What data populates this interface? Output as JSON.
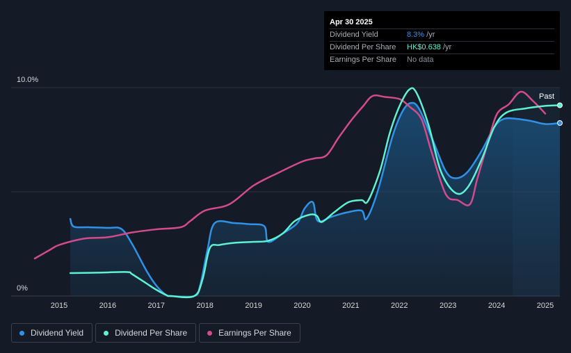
{
  "tooltip": {
    "date": "Apr 30 2025",
    "rows": [
      {
        "label": "Dividend Yield",
        "value": "8.3%",
        "unit": " /yr",
        "color": "#2e93e8"
      },
      {
        "label": "Dividend Per Share",
        "value": "HK$0.638",
        "unit": " /yr",
        "color": "#5ef2d2"
      },
      {
        "label": "Earnings Per Share",
        "value": "No data",
        "unit": "",
        "color": "#8a8f97"
      }
    ]
  },
  "legend": [
    {
      "label": "Dividend Yield",
      "color": "#2e93e8"
    },
    {
      "label": "Dividend Per Share",
      "color": "#5ef2d2"
    },
    {
      "label": "Earnings Per Share",
      "color": "#d44b8c"
    }
  ],
  "past_label": "Past",
  "chart_data": {
    "type": "line",
    "title": "",
    "xlabel": "",
    "ylabel": "",
    "xlim": [
      2014.5,
      2025.33
    ],
    "ylim": [
      0,
      10
    ],
    "x_ticks": [
      "2015",
      "2016",
      "2017",
      "2018",
      "2019",
      "2020",
      "2021",
      "2022",
      "2023",
      "2024",
      "2025"
    ],
    "y_ticks": [
      {
        "value": 10,
        "label": "10.0%"
      },
      {
        "value": 0,
        "label": "0%"
      }
    ],
    "grid": true,
    "past_region_start": 2024.33,
    "series": [
      {
        "name": "Dividend Yield",
        "color": "#2e93e8",
        "area": true,
        "end_marker": true,
        "points": [
          [
            2015.23,
            3.7
          ],
          [
            2015.3,
            3.33
          ],
          [
            2015.6,
            3.3
          ],
          [
            2016.0,
            3.27
          ],
          [
            2016.28,
            3.22
          ],
          [
            2016.5,
            2.5
          ],
          [
            2016.8,
            1.2
          ],
          [
            2017.0,
            0.5
          ],
          [
            2017.2,
            0.05
          ],
          [
            2017.3,
            0
          ],
          [
            2017.78,
            0
          ],
          [
            2017.9,
            0.5
          ],
          [
            2018.05,
            2.2
          ],
          [
            2018.2,
            3.5
          ],
          [
            2018.6,
            3.5
          ],
          [
            2018.9,
            3.45
          ],
          [
            2019.22,
            3.35
          ],
          [
            2019.3,
            2.6
          ],
          [
            2019.6,
            3.0
          ],
          [
            2019.9,
            3.5
          ],
          [
            2020.05,
            4.2
          ],
          [
            2020.22,
            4.5
          ],
          [
            2020.32,
            3.6
          ],
          [
            2020.6,
            3.8
          ],
          [
            2020.9,
            4.0
          ],
          [
            2021.22,
            4.1
          ],
          [
            2021.32,
            3.7
          ],
          [
            2021.55,
            5.0
          ],
          [
            2021.85,
            7.6
          ],
          [
            2022.05,
            8.8
          ],
          [
            2022.22,
            9.25
          ],
          [
            2022.4,
            9.0
          ],
          [
            2022.7,
            7.4
          ],
          [
            2022.95,
            6.0
          ],
          [
            2023.15,
            5.65
          ],
          [
            2023.4,
            5.95
          ],
          [
            2023.7,
            7.0
          ],
          [
            2023.95,
            8.1
          ],
          [
            2024.15,
            8.5
          ],
          [
            2024.4,
            8.5
          ],
          [
            2024.7,
            8.4
          ],
          [
            2025.0,
            8.25
          ],
          [
            2025.3,
            8.3
          ]
        ]
      },
      {
        "name": "Dividend Per Share",
        "color": "#5ef2d2",
        "area": false,
        "end_marker": true,
        "points": [
          [
            2015.23,
            1.1
          ],
          [
            2015.8,
            1.12
          ],
          [
            2016.4,
            1.15
          ],
          [
            2016.5,
            1.05
          ],
          [
            2016.8,
            0.6
          ],
          [
            2017.0,
            0.3
          ],
          [
            2017.2,
            0.05
          ],
          [
            2017.3,
            0
          ],
          [
            2017.78,
            0
          ],
          [
            2017.95,
            0.8
          ],
          [
            2018.1,
            2.3
          ],
          [
            2018.3,
            2.45
          ],
          [
            2018.6,
            2.55
          ],
          [
            2019.0,
            2.6
          ],
          [
            2019.3,
            2.65
          ],
          [
            2019.6,
            3.0
          ],
          [
            2019.85,
            3.6
          ],
          [
            2020.15,
            3.9
          ],
          [
            2020.3,
            3.85
          ],
          [
            2020.4,
            3.55
          ],
          [
            2020.65,
            4.0
          ],
          [
            2020.95,
            4.5
          ],
          [
            2021.22,
            4.6
          ],
          [
            2021.35,
            4.55
          ],
          [
            2021.6,
            6.0
          ],
          [
            2021.8,
            7.8
          ],
          [
            2022.0,
            9.1
          ],
          [
            2022.2,
            9.9
          ],
          [
            2022.35,
            9.75
          ],
          [
            2022.6,
            8.2
          ],
          [
            2022.85,
            6.0
          ],
          [
            2023.15,
            4.95
          ],
          [
            2023.4,
            5.2
          ],
          [
            2023.7,
            6.6
          ],
          [
            2023.95,
            8.1
          ],
          [
            2024.2,
            8.8
          ],
          [
            2024.6,
            9.0
          ],
          [
            2025.0,
            9.12
          ],
          [
            2025.3,
            9.15
          ]
        ]
      },
      {
        "name": "Earnings Per Share",
        "color": "#d44b8c",
        "area": false,
        "end_marker": false,
        "points": [
          [
            2014.5,
            1.8
          ],
          [
            2014.8,
            2.2
          ],
          [
            2015.0,
            2.45
          ],
          [
            2015.5,
            2.75
          ],
          [
            2016.0,
            2.82
          ],
          [
            2016.5,
            3.05
          ],
          [
            2017.0,
            3.2
          ],
          [
            2017.5,
            3.3
          ],
          [
            2017.7,
            3.6
          ],
          [
            2018.0,
            4.1
          ],
          [
            2018.5,
            4.4
          ],
          [
            2019.0,
            5.3
          ],
          [
            2019.5,
            5.9
          ],
          [
            2020.0,
            6.45
          ],
          [
            2020.25,
            6.6
          ],
          [
            2020.5,
            6.75
          ],
          [
            2020.75,
            7.6
          ],
          [
            2021.0,
            8.4
          ],
          [
            2021.25,
            9.1
          ],
          [
            2021.45,
            9.6
          ],
          [
            2021.7,
            9.55
          ],
          [
            2022.0,
            9.45
          ],
          [
            2022.2,
            9.1
          ],
          [
            2022.45,
            8.5
          ],
          [
            2022.65,
            7.0
          ],
          [
            2022.95,
            4.9
          ],
          [
            2023.2,
            4.6
          ],
          [
            2023.45,
            4.4
          ],
          [
            2023.6,
            5.6
          ],
          [
            2023.8,
            7.2
          ],
          [
            2024.0,
            8.7
          ],
          [
            2024.25,
            9.2
          ],
          [
            2024.5,
            9.8
          ],
          [
            2024.75,
            9.35
          ],
          [
            2025.0,
            8.75
          ]
        ]
      }
    ]
  }
}
